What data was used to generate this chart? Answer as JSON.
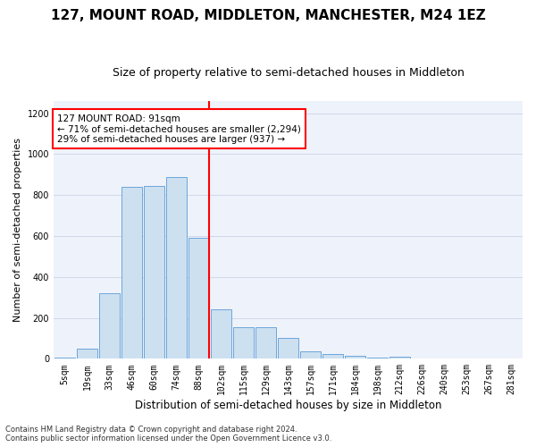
{
  "title": "127, MOUNT ROAD, MIDDLETON, MANCHESTER, M24 1EZ",
  "subtitle": "Size of property relative to semi-detached houses in Middleton",
  "xlabel": "Distribution of semi-detached houses by size in Middleton",
  "ylabel": "Number of semi-detached properties",
  "footnote": "Contains HM Land Registry data © Crown copyright and database right 2024.\nContains public sector information licensed under the Open Government Licence v3.0.",
  "bar_labels": [
    "5sqm",
    "19sqm",
    "33sqm",
    "46sqm",
    "60sqm",
    "74sqm",
    "88sqm",
    "102sqm",
    "115sqm",
    "129sqm",
    "143sqm",
    "157sqm",
    "171sqm",
    "184sqm",
    "198sqm",
    "212sqm",
    "226sqm",
    "240sqm",
    "253sqm",
    "267sqm",
    "281sqm"
  ],
  "bar_values": [
    5,
    50,
    320,
    840,
    845,
    890,
    590,
    240,
    155,
    155,
    100,
    38,
    25,
    13,
    5,
    12,
    3,
    0,
    3,
    0,
    2
  ],
  "bar_color": "#cce0f0",
  "bar_edge_color": "#5b9bd5",
  "vline_index": 6,
  "vline_color": "red",
  "annotation_text": "127 MOUNT ROAD: 91sqm\n← 71% of semi-detached houses are smaller (2,294)\n29% of semi-detached houses are larger (937) →",
  "ylim": [
    0,
    1260
  ],
  "yticks": [
    0,
    200,
    400,
    600,
    800,
    1000,
    1200
  ],
  "grid_color": "#d0d8e8",
  "background_color": "#eef2fb",
  "title_fontsize": 11,
  "subtitle_fontsize": 9,
  "ylabel_fontsize": 8,
  "xlabel_fontsize": 8.5,
  "tick_fontsize": 7,
  "footnote_fontsize": 6,
  "annot_fontsize": 7.5
}
